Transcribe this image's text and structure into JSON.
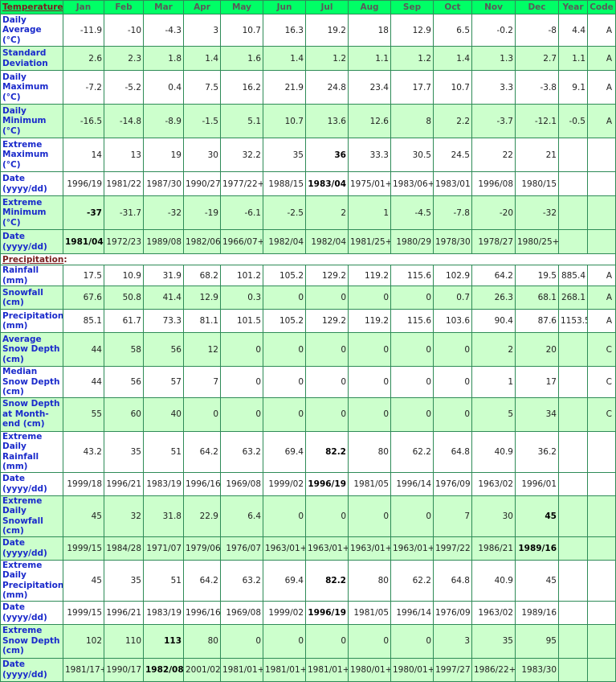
{
  "header": {
    "section_temperature": "Temperature",
    "months": [
      "Jan",
      "Feb",
      "Mar",
      "Apr",
      "May",
      "Jun",
      "Jul",
      "Aug",
      "Sep",
      "Oct",
      "Nov",
      "Dec"
    ],
    "year": "Year",
    "code": "Code"
  },
  "precip_section": "Precipitation",
  "temperature_rows": [
    {
      "label": "Daily Average (°C)",
      "h": 40,
      "bg": "w",
      "values": [
        "-11.9",
        "-10",
        "-4.3",
        "3",
        "10.7",
        "16.3",
        "19.2",
        "18",
        "12.9",
        "6.5",
        "-0.2",
        "-8"
      ],
      "year": "4.4",
      "code": "A",
      "bold": []
    },
    {
      "label": "Standard Deviation",
      "h": 30,
      "bg": "g",
      "values": [
        "2.6",
        "2.3",
        "1.8",
        "1.4",
        "1.6",
        "1.4",
        "1.2",
        "1.1",
        "1.2",
        "1.4",
        "1.3",
        "2.7"
      ],
      "year": "1.1",
      "code": "A",
      "bold": []
    },
    {
      "label": "Daily Maximum (°C)",
      "h": 42,
      "bg": "w",
      "values": [
        "-7.2",
        "-5.2",
        "0.4",
        "7.5",
        "16.2",
        "21.9",
        "24.8",
        "23.4",
        "17.7",
        "10.7",
        "3.3",
        "-3.8"
      ],
      "year": "9.1",
      "code": "A",
      "bold": []
    },
    {
      "label": "Daily Minimum (°C)",
      "h": 42,
      "bg": "g",
      "values": [
        "-16.5",
        "-14.8",
        "-8.9",
        "-1.5",
        "5.1",
        "10.7",
        "13.6",
        "12.6",
        "8",
        "2.2",
        "-3.7",
        "-12.1"
      ],
      "year": "-0.5",
      "code": "A",
      "bold": []
    },
    {
      "label": "Extreme Maximum (°C)",
      "h": 42,
      "bg": "w",
      "values": [
        "14",
        "13",
        "19",
        "30",
        "32.2",
        "35",
        "36",
        "33.3",
        "30.5",
        "24.5",
        "22",
        "21"
      ],
      "year": "",
      "code": "",
      "bold": [
        6
      ]
    },
    {
      "label": "Date (yyyy/dd)",
      "h": 30,
      "bg": "w",
      "values": [
        "1996/19",
        "1981/22",
        "1987/30",
        "1990/27",
        "1977/22+",
        "1988/15",
        "1983/04",
        "1975/01+",
        "1983/06+",
        "1983/01",
        "1996/08",
        "1980/15"
      ],
      "year": "",
      "code": "",
      "bold": [
        6
      ]
    },
    {
      "label": "Extreme Minimum (°C)",
      "h": 42,
      "bg": "g",
      "values": [
        "-37",
        "-31.7",
        "-32",
        "-19",
        "-6.1",
        "-2.5",
        "2",
        "1",
        "-4.5",
        "-7.8",
        "-20",
        "-32"
      ],
      "year": "",
      "code": "",
      "bold": [
        0
      ]
    },
    {
      "label": "Date (yyyy/dd)",
      "h": 30,
      "bg": "g",
      "values": [
        "1981/04",
        "1972/23",
        "1989/08",
        "1982/06",
        "1966/07+",
        "1982/04",
        "1982/04",
        "1981/25+",
        "1980/29",
        "1978/30",
        "1978/27",
        "1980/25+"
      ],
      "year": "",
      "code": "",
      "bold": [
        0
      ]
    }
  ],
  "precipitation_rows": [
    {
      "label": "Rainfall (mm)",
      "h": 17,
      "bg": "w",
      "values": [
        "17.5",
        "10.9",
        "31.9",
        "68.2",
        "101.2",
        "105.2",
        "129.2",
        "119.2",
        "115.6",
        "102.9",
        "64.2",
        "19.5"
      ],
      "year": "885.4",
      "code": "A",
      "bold": []
    },
    {
      "label": "Snowfall (cm)",
      "h": 29,
      "bg": "g",
      "values": [
        "67.6",
        "50.8",
        "41.4",
        "12.9",
        "0.3",
        "0",
        "0",
        "0",
        "0",
        "0.7",
        "26.3",
        "68.1"
      ],
      "year": "268.1",
      "code": "A",
      "bold": []
    },
    {
      "label": "Precipitation (mm)",
      "h": 29,
      "bg": "w",
      "values": [
        "85.1",
        "61.7",
        "73.3",
        "81.1",
        "101.5",
        "105.2",
        "129.2",
        "119.2",
        "115.6",
        "103.6",
        "90.4",
        "87.6"
      ],
      "year": "1153.5",
      "code": "A",
      "bold": []
    },
    {
      "label": "Average Snow Depth (cm)",
      "h": 42,
      "bg": "g",
      "values": [
        "44",
        "58",
        "56",
        "12",
        "0",
        "0",
        "0",
        "0",
        "0",
        "0",
        "2",
        "20"
      ],
      "year": "",
      "code": "C",
      "bold": []
    },
    {
      "label": "Median Snow Depth (cm)",
      "h": 29,
      "bg": "w",
      "values": [
        "44",
        "56",
        "57",
        "7",
        "0",
        "0",
        "0",
        "0",
        "0",
        "0",
        "1",
        "17"
      ],
      "year": "",
      "code": "C",
      "bold": []
    },
    {
      "label": "Snow Depth at Month-end (cm)",
      "h": 42,
      "bg": "g",
      "values": [
        "55",
        "60",
        "40",
        "0",
        "0",
        "0",
        "0",
        "0",
        "0",
        "0",
        "5",
        "34"
      ],
      "year": "",
      "code": "C",
      "bold": []
    },
    {
      "label": "Extreme Daily Rainfall (mm)",
      "h": 29,
      "bg": "w",
      "values": [
        "43.2",
        "35",
        "51",
        "64.2",
        "63.2",
        "69.4",
        "82.2",
        "80",
        "62.2",
        "64.8",
        "40.9",
        "36.2"
      ],
      "year": "",
      "code": "",
      "bold": [
        6
      ]
    },
    {
      "label": "Date (yyyy/dd)",
      "h": 29,
      "bg": "w",
      "values": [
        "1999/18",
        "1996/21",
        "1983/19",
        "1996/16",
        "1969/08",
        "1999/02",
        "1996/19",
        "1981/05",
        "1996/14",
        "1976/09",
        "1963/02",
        "1996/01"
      ],
      "year": "",
      "code": "",
      "bold": [
        6
      ]
    },
    {
      "label": "Extreme Daily Snowfall (cm)",
      "h": 42,
      "bg": "g",
      "values": [
        "45",
        "32",
        "31.8",
        "22.9",
        "6.4",
        "0",
        "0",
        "0",
        "0",
        "7",
        "30",
        "45"
      ],
      "year": "",
      "code": "",
      "bold": [
        11
      ]
    },
    {
      "label": "Date (yyyy/dd)",
      "h": 29,
      "bg": "g",
      "values": [
        "1999/15",
        "1984/28",
        "1971/07",
        "1979/06",
        "1976/07",
        "1963/01+",
        "1963/01+",
        "1963/01+",
        "1963/01+",
        "1997/22",
        "1986/21",
        "1989/16"
      ],
      "year": "",
      "code": "",
      "bold": [
        11
      ]
    },
    {
      "label": "Extreme Daily Precipitation (mm)",
      "h": 42,
      "bg": "w",
      "values": [
        "45",
        "35",
        "51",
        "64.2",
        "63.2",
        "69.4",
        "82.2",
        "80",
        "62.2",
        "64.8",
        "40.9",
        "45"
      ],
      "year": "",
      "code": "",
      "bold": [
        6
      ]
    },
    {
      "label": "Date (yyyy/dd)",
      "h": 29,
      "bg": "w",
      "values": [
        "1999/15",
        "1996/21",
        "1983/19",
        "1996/16",
        "1969/08",
        "1999/02",
        "1996/19",
        "1981/05",
        "1996/14",
        "1976/09",
        "1963/02",
        "1989/16"
      ],
      "year": "",
      "code": "",
      "bold": [
        6
      ]
    },
    {
      "label": "Extreme Snow Depth (cm)",
      "h": 42,
      "bg": "g",
      "values": [
        "102",
        "110",
        "113",
        "80",
        "0",
        "0",
        "0",
        "0",
        "0",
        "3",
        "35",
        "95"
      ],
      "year": "",
      "code": "",
      "bold": [
        2
      ]
    },
    {
      "label": "Date (yyyy/dd)",
      "h": 29,
      "bg": "g",
      "values": [
        "1981/17+",
        "1990/17",
        "1982/08",
        "2001/02",
        "1981/01+",
        "1981/01+",
        "1981/01+",
        "1980/01+",
        "1980/01+",
        "1997/27",
        "1986/22+",
        "1983/30"
      ],
      "year": "",
      "code": "",
      "bold": [
        2
      ]
    }
  ]
}
